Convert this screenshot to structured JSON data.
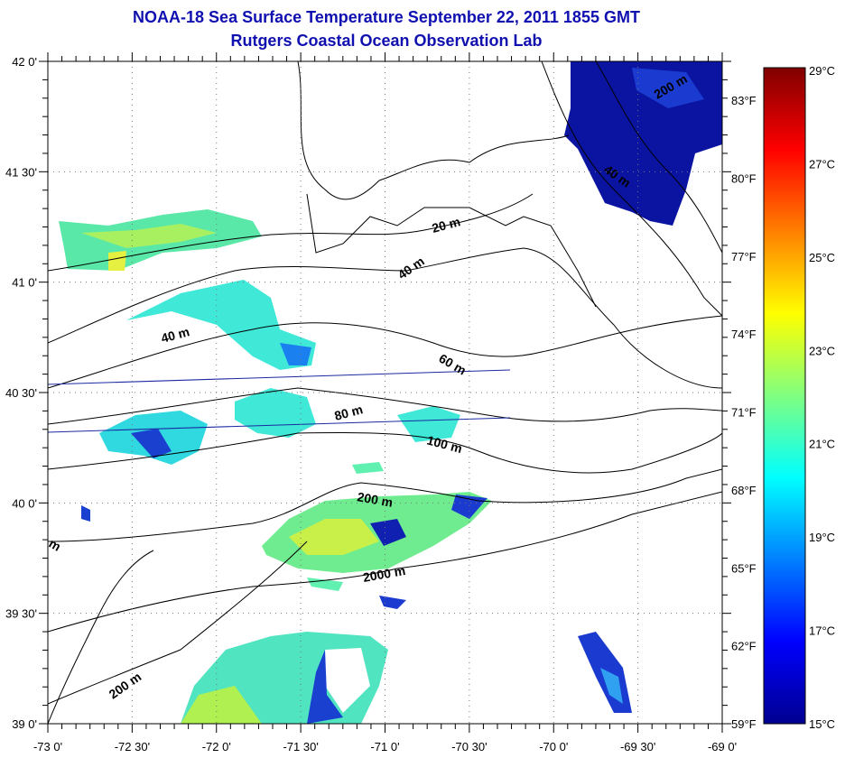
{
  "title": "NOAA-18 Sea Surface Temperature September 22, 2011 1855 GMT",
  "subtitle": "Rutgers Coastal Ocean Observation Lab",
  "map": {
    "lon_range": [
      -73,
      -69
    ],
    "lat_range": [
      39,
      42
    ],
    "x_tick_labels": [
      "-73 0'",
      "-72 30'",
      "-72 0'",
      "-71 30'",
      "-71 0'",
      "-70 30'",
      "-70 0'",
      "-69 30'",
      "-69 0'"
    ],
    "y_tick_labels": [
      "42 0'",
      "41 30'",
      "41 0'",
      "40 30'",
      "40 0'",
      "39 30'",
      "39 0'"
    ],
    "depth_labels": [
      "20 m",
      "40 m",
      "40 m",
      "60 m",
      "80 m",
      "100 m",
      "200 m",
      "2000 m",
      "200 m",
      "200 m",
      "40 m",
      "m"
    ]
  },
  "colorbar": {
    "celsius_labels": [
      "29°C",
      "27°C",
      "25°C",
      "23°C",
      "21°C",
      "19°C",
      "17°C",
      "15°C"
    ],
    "fahrenheit_labels": [
      "83°F",
      "80°F",
      "77°F",
      "74°F",
      "71°F",
      "68°F",
      "65°F",
      "62°F",
      "59°F"
    ],
    "range_c": [
      15,
      29
    ],
    "colormap": [
      "#00008f",
      "#0000ff",
      "#0080ff",
      "#00ffff",
      "#80ff80",
      "#ffff00",
      "#ff8000",
      "#ff0000",
      "#800000"
    ]
  }
}
